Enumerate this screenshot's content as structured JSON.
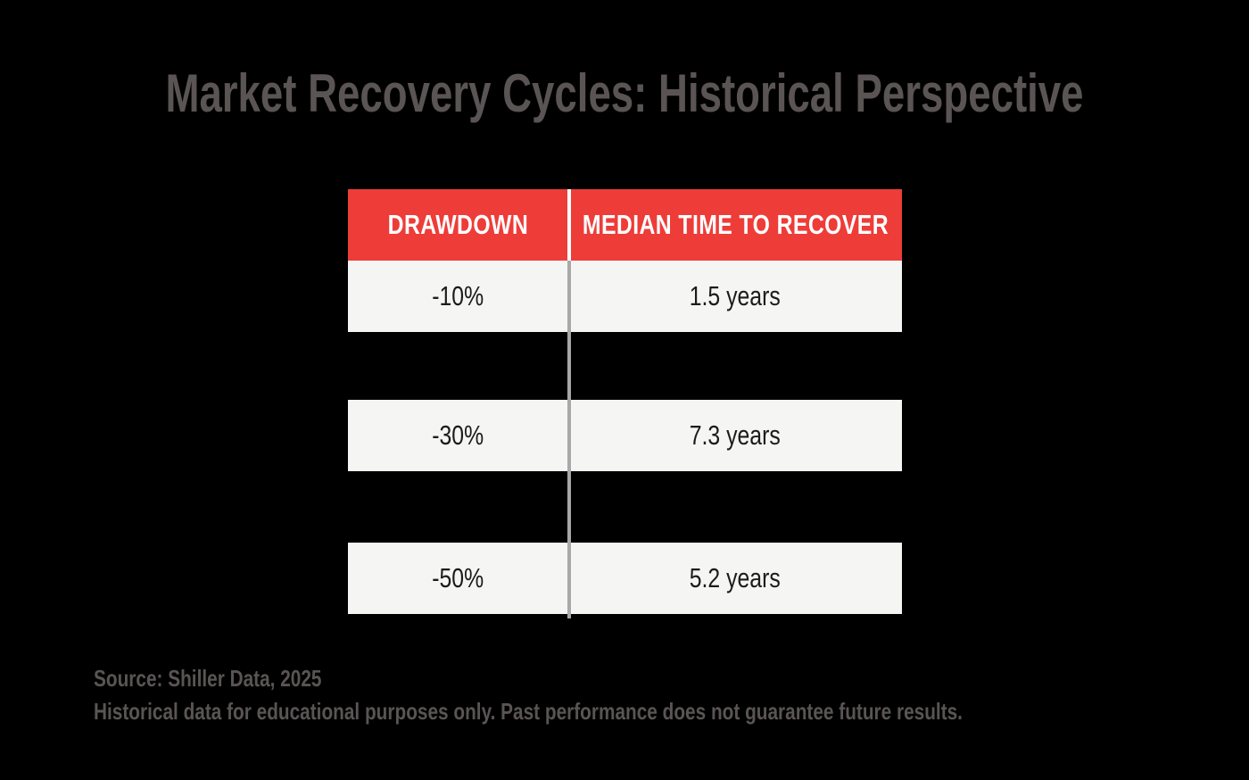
{
  "title": "Market Recovery Cycles: Historical Perspective",
  "table": {
    "columns": [
      "DRAWDOWN",
      "MEDIAN TIME TO RECOVER"
    ],
    "rows": [
      {
        "drawdown": "-10%",
        "recovery": "1.5 years"
      },
      {
        "drawdown": "-30%",
        "recovery": "7.3 years"
      },
      {
        "drawdown": "-50%",
        "recovery": "5.2 years"
      }
    ]
  },
  "footer": {
    "source": "Source: Shiller Data, 2025",
    "disclaimer": "Historical data for educational purposes only. Past performance does not guarantee future results."
  },
  "colors": {
    "background": "#000000",
    "header_red": "#ee3c38",
    "row_light": "#f5f5f4",
    "title_gray": "#5a5454",
    "cell_text": "#1c1c1c",
    "divider_gray": "#a8a8a8",
    "divider_white": "#ffffff"
  },
  "chart_data": {
    "type": "table",
    "title": "Market Recovery Cycles: Historical Perspective",
    "columns": [
      "DRAWDOWN",
      "MEDIAN TIME TO RECOVER"
    ],
    "rows": [
      [
        "-10%",
        "1.5 years"
      ],
      [
        "-30%",
        "7.3 years"
      ],
      [
        "-50%",
        "5.2 years"
      ]
    ],
    "drawdown_pct": [
      -10,
      -30,
      -50
    ],
    "median_recovery_years": [
      1.5,
      7.3,
      5.2
    ],
    "source": "Source: Shiller Data, 2025",
    "note": "Historical data for educational purposes only. Past performance does not guarantee future results.",
    "legend_position": "none",
    "grid": false
  }
}
